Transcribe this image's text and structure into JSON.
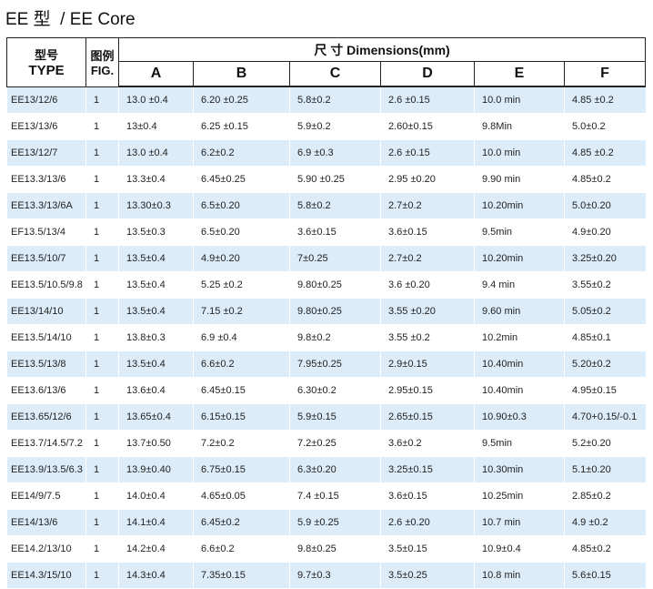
{
  "header": {
    "title": "EE 型  / EE Core"
  },
  "table": {
    "type_head": [
      "型号",
      "TYPE"
    ],
    "fig_head": [
      "图例",
      "FIG."
    ],
    "dim_head": "尺 寸 Dimensions(mm)",
    "columns": [
      "A",
      "B",
      "C",
      "D",
      "E",
      "F"
    ],
    "rows": [
      [
        "EE13/12/6",
        "1",
        "13.0 ±0.4",
        "6.20 ±0.25",
        "5.8±0.2",
        "2.6 ±0.15",
        "10.0  min",
        "4.85 ±0.2"
      ],
      [
        "EE13/13/6",
        "1",
        "13±0.4",
        "6.25 ±0.15",
        "5.9±0.2",
        "2.60±0.15",
        "9.8Min",
        "5.0±0.2"
      ],
      [
        "EE13/12/7",
        "1",
        "13.0 ±0.4",
        "6.2±0.2",
        "6.9 ±0.3",
        "2.6  ±0.15",
        "10.0 min",
        "4.85 ±0.2"
      ],
      [
        "EE13.3/13/6",
        "1",
        "13.3±0.4",
        "6.45±0.25",
        "5.90 ±0.25",
        "2.95 ±0.20",
        "9.90  min",
        "4.85±0.2"
      ],
      [
        "EE13.3/13/6A",
        "1",
        "13.30±0.3",
        "6.5±0.20",
        "5.8±0.2",
        "2.7±0.2",
        "10.20min",
        "5.0±0.20"
      ],
      [
        "EF13.5/13/4",
        "1",
        "13.5±0.3",
        "6.5±0.20",
        "3.6±0.15",
        "3.6±0.15",
        "9.5min",
        "4.9±0.20"
      ],
      [
        "EE13.5/10/7",
        "1",
        "13.5±0.4",
        "4.9±0.20",
        "7±0.25",
        "2.7±0.2",
        "10.20min",
        "3.25±0.20"
      ],
      [
        "EE13.5/10.5/9.8",
        "1",
        "13.5±0.4",
        "5.25 ±0.2",
        "9.80±0.25",
        "3.6 ±0.20",
        "9.4 min",
        "3.55±0.2"
      ],
      [
        "EE13/14/10",
        "1",
        "13.5±0.4",
        "7.15 ±0.2",
        "9.80±0.25",
        "3.55 ±0.20",
        "9.60  min",
        "5.05±0.2"
      ],
      [
        "EE13.5/14/10",
        "1",
        "13.8±0.3",
        "6.9 ±0.4",
        "9.8±0.2",
        "3.55 ±0.2",
        "10.2min",
        "4.85±0.1"
      ],
      [
        "EE13.5/13/8",
        "1",
        "13.5±0.4",
        "6.6±0.2",
        "7.95±0.25",
        "2.9±0.15",
        "10.40min",
        "5.20±0.2"
      ],
      [
        "EE13.6/13/6",
        "1",
        "13.6±0.4",
        "6.45±0.15",
        "6.30±0.2",
        "2.95±0.15",
        "10.40min",
        "4.95±0.15"
      ],
      [
        "EE13.65/12/6",
        "1",
        "13.65±0.4",
        "6.15±0.15",
        "5.9±0.15",
        "2.65±0.15",
        "10.90±0.3",
        "4.70+0.15/-0.1"
      ],
      [
        "EE13.7/14.5/7.2",
        "1",
        "13.7±0.50",
        "7.2±0.2",
        "7.2±0.25",
        "3.6±0.2",
        "9.5min",
        "5.2±0.20"
      ],
      [
        "EE13.9/13.5/6.3",
        "1",
        "13.9±0.40",
        "6.75±0.15",
        "6.3±0.20",
        "3.25±0.15",
        "10.30min",
        "5.1±0.20"
      ],
      [
        "EE14/9/7.5",
        "1",
        "14.0±0.4",
        "4.65±0.05",
        "7.4 ±0.15",
        "3.6±0.15",
        "10.25min",
        "2.85±0.2"
      ],
      [
        "EE14/13/6",
        "1",
        "14.1±0.4",
        "6.45±0.2",
        "5.9 ±0.25",
        "2.6 ±0.20",
        "10.7 min",
        "4.9 ±0.2"
      ],
      [
        "EE14.2/13/10",
        "1",
        "14.2±0.4",
        "6.6±0.2",
        "9.8±0.25",
        "3.5±0.15",
        "10.9±0.4",
        "4.85±0.2"
      ],
      [
        "EE14.3/15/10",
        "1",
        "14.3±0.4",
        "7.35±0.15",
        "9.7±0.3",
        "3.5±0.25",
        "10.8 min",
        "5.6±0.15"
      ]
    ]
  }
}
